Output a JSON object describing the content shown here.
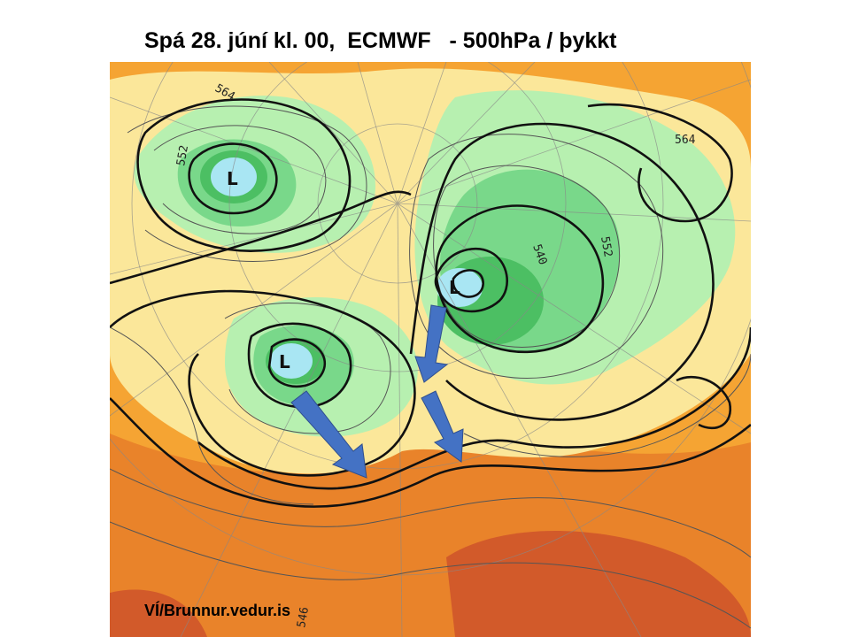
{
  "slide": {
    "title": "Spá 28. júní kl. 00,  ECMWF   - 500hPa / þykkt",
    "credit": "VÍ/Brunnur.vedur.is"
  },
  "map": {
    "lows": [
      {
        "label": "L"
      },
      {
        "label": "L"
      },
      {
        "label": "L"
      }
    ],
    "contour_labels": [
      "564",
      "564",
      "552",
      "540",
      "552",
      "546"
    ],
    "colors": {
      "orange": "#f5a433",
      "dark_orange": "#e9832a",
      "red_brown": "#d25a2a",
      "yellow": "#fbe79a",
      "light_green": "#b7f0b0",
      "green": "#79d88a",
      "dark_green": "#4cbf63",
      "light_blue": "#a9e6f3",
      "arrow_blue": "#4472c4"
    }
  }
}
